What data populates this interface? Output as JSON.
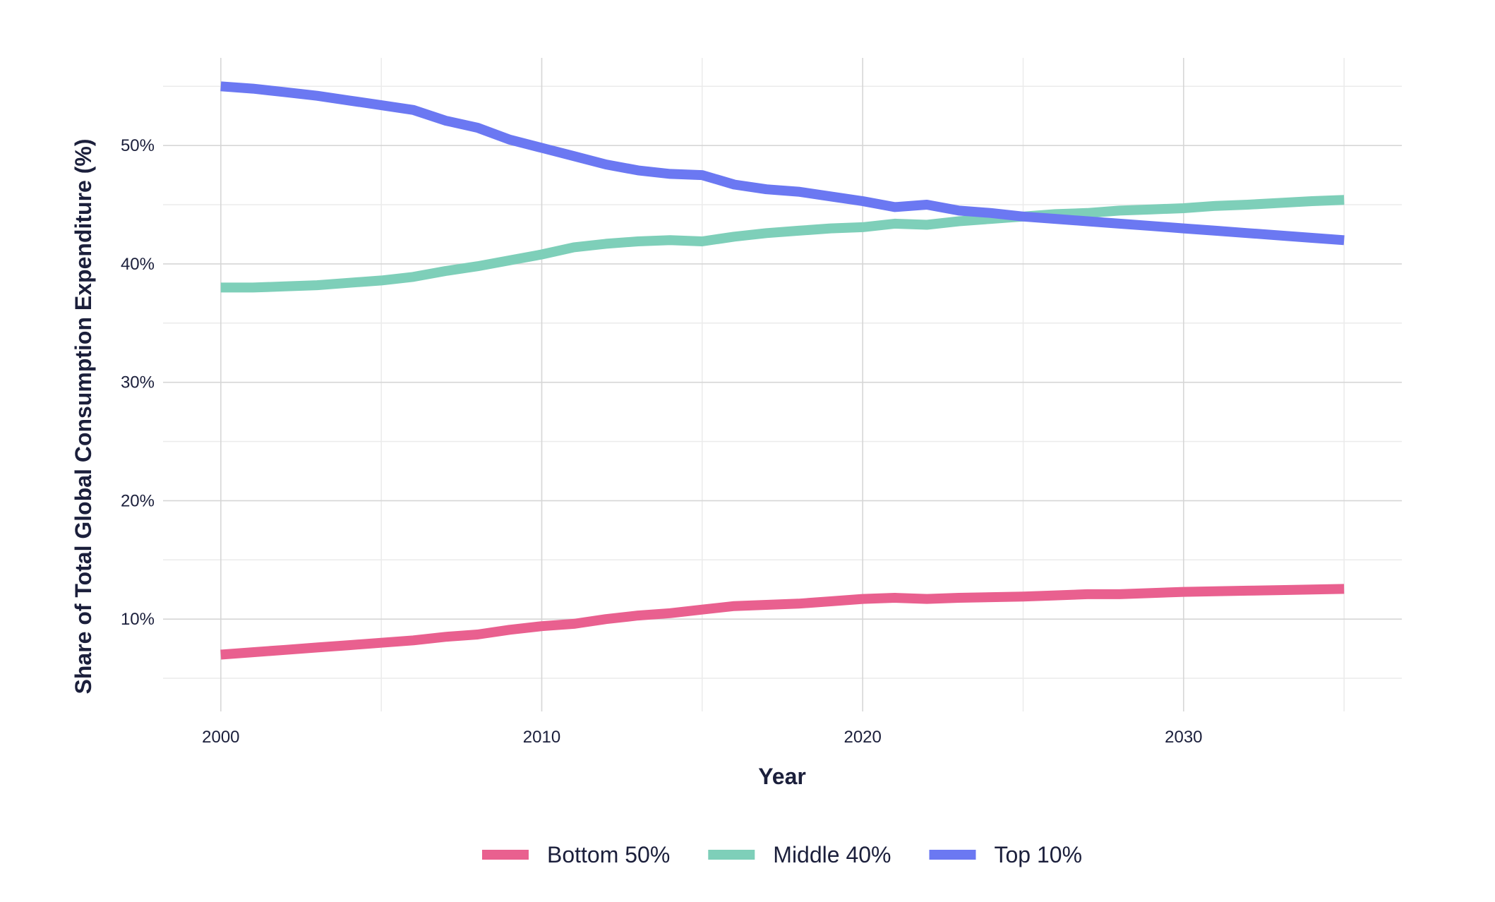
{
  "chart_data": {
    "type": "line",
    "xlabel": "Year",
    "ylabel": "Share of Total Global Consumption Expenditure (%)",
    "xlim": [
      1998.2,
      2036.8
    ],
    "ylim": [
      2.2,
      57.4
    ],
    "x_ticks": [
      2000,
      2010,
      2020,
      2030
    ],
    "x_tick_labels": [
      "2000",
      "2010",
      "2020",
      "2030"
    ],
    "y_ticks": [
      10,
      20,
      30,
      40,
      50
    ],
    "y_tick_labels": [
      "10%",
      "20%",
      "30%",
      "40%",
      "50%"
    ],
    "grid": true,
    "legend_position": "bottom",
    "x": [
      2000,
      2001,
      2002,
      2003,
      2004,
      2005,
      2006,
      2007,
      2008,
      2009,
      2010,
      2011,
      2012,
      2013,
      2014,
      2015,
      2016,
      2017,
      2018,
      2019,
      2020,
      2021,
      2022,
      2023,
      2024,
      2025,
      2026,
      2027,
      2028,
      2029,
      2030,
      2031,
      2032,
      2033,
      2034,
      2035
    ],
    "series": [
      {
        "name": "Bottom 50%",
        "color": "#e9608f",
        "values": [
          7.0,
          7.2,
          7.4,
          7.6,
          7.8,
          8.0,
          8.2,
          8.5,
          8.7,
          9.1,
          9.4,
          9.6,
          10.0,
          10.3,
          10.5,
          10.8,
          11.1,
          11.2,
          11.3,
          11.5,
          11.7,
          11.8,
          11.7,
          11.8,
          11.85,
          11.9,
          12.0,
          12.1,
          12.1,
          12.2,
          12.3,
          12.35,
          12.4,
          12.45,
          12.5,
          12.55
        ]
      },
      {
        "name": "Middle 40%",
        "color": "#7ecfb9",
        "values": [
          38.0,
          38.0,
          38.1,
          38.2,
          38.4,
          38.6,
          38.9,
          39.4,
          39.8,
          40.3,
          40.8,
          41.4,
          41.7,
          41.9,
          42.0,
          41.9,
          42.3,
          42.6,
          42.8,
          43.0,
          43.1,
          43.4,
          43.3,
          43.6,
          43.8,
          44.0,
          44.2,
          44.3,
          44.5,
          44.6,
          44.7,
          44.9,
          45.0,
          45.15,
          45.3,
          45.4
        ]
      },
      {
        "name": "Top 10%",
        "color": "#6b78f2",
        "values": [
          55.0,
          54.8,
          54.5,
          54.2,
          53.8,
          53.4,
          53.0,
          52.1,
          51.5,
          50.5,
          49.8,
          49.1,
          48.4,
          47.9,
          47.6,
          47.5,
          46.7,
          46.3,
          46.1,
          45.7,
          45.3,
          44.8,
          45.0,
          44.5,
          44.3,
          44.0,
          43.8,
          43.6,
          43.4,
          43.2,
          43.0,
          42.8,
          42.6,
          42.4,
          42.2,
          42.0
        ]
      }
    ]
  }
}
